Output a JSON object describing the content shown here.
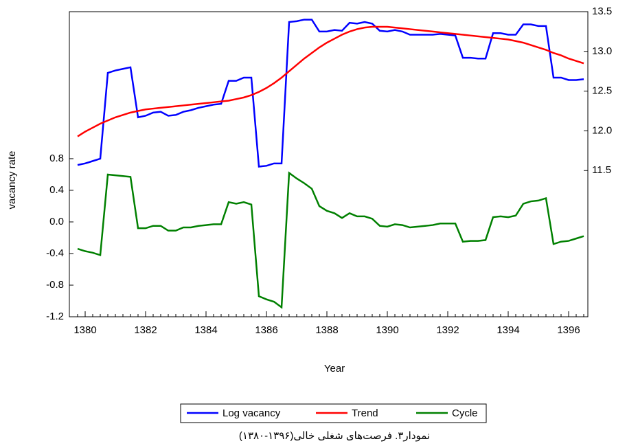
{
  "chart_data": {
    "type": "line",
    "x_label": "Year",
    "y_label": "vacancy rate",
    "caption": "نمودار۳. فرصت‌های شغلی خالی(۱۳۹۶-۱۳۸۰)",
    "categories": [
      null,
      "1380",
      null,
      null,
      null,
      null,
      null,
      null,
      null,
      "1382",
      null,
      null,
      null,
      null,
      null,
      null,
      null,
      "1384",
      null,
      null,
      null,
      null,
      null,
      null,
      null,
      "1386",
      null,
      null,
      null,
      null,
      null,
      null,
      null,
      "1388",
      null,
      null,
      null,
      null,
      null,
      null,
      null,
      "1390",
      null,
      null,
      null,
      null,
      null,
      null,
      null,
      "1392",
      null,
      null,
      null,
      null,
      null,
      null,
      null,
      "1394",
      null,
      null,
      null,
      null,
      null,
      null,
      null,
      "1396",
      null,
      null
    ],
    "series": [
      {
        "name": "Log vacancy",
        "color": "#0000ff",
        "axis": "y2",
        "values": [
          11.57,
          11.59,
          11.62,
          11.65,
          12.73,
          12.76,
          12.78,
          12.8,
          12.17,
          12.19,
          12.23,
          12.24,
          12.19,
          12.2,
          12.24,
          12.26,
          12.29,
          12.31,
          12.33,
          12.34,
          12.63,
          12.63,
          12.67,
          12.67,
          11.55,
          11.56,
          11.59,
          11.59,
          13.37,
          13.38,
          13.4,
          13.4,
          13.25,
          13.25,
          13.27,
          13.26,
          13.36,
          13.35,
          13.37,
          13.35,
          13.26,
          13.25,
          13.27,
          13.25,
          13.21,
          13.21,
          13.21,
          13.21,
          13.22,
          13.21,
          13.2,
          12.92,
          12.92,
          12.91,
          12.91,
          13.23,
          13.23,
          13.21,
          13.21,
          13.34,
          13.34,
          13.32,
          13.32,
          12.67,
          12.67,
          12.64,
          12.64,
          12.65
        ]
      },
      {
        "name": "Trend",
        "color": "#ff0000",
        "axis": "y2",
        "values": [
          11.93,
          11.99,
          12.04,
          12.09,
          12.13,
          12.17,
          12.2,
          12.23,
          12.25,
          12.27,
          12.28,
          12.29,
          12.3,
          12.31,
          12.32,
          12.33,
          12.34,
          12.35,
          12.36,
          12.37,
          12.38,
          12.4,
          12.42,
          12.45,
          12.49,
          12.54,
          12.6,
          12.67,
          12.75,
          12.83,
          12.91,
          12.98,
          13.05,
          13.11,
          13.16,
          13.21,
          13.25,
          13.28,
          13.3,
          13.31,
          13.31,
          13.31,
          13.3,
          13.29,
          13.28,
          13.27,
          13.26,
          13.25,
          13.24,
          13.23,
          13.22,
          13.21,
          13.2,
          13.19,
          13.18,
          13.17,
          13.16,
          13.15,
          13.13,
          13.11,
          13.08,
          13.05,
          13.02,
          12.98,
          12.95,
          12.91,
          12.88,
          12.85
        ]
      },
      {
        "name": "Cycle",
        "color": "#008000",
        "axis": "y",
        "values": [
          -0.34,
          -0.37,
          -0.39,
          -0.42,
          0.6,
          0.59,
          0.58,
          0.57,
          -0.08,
          -0.08,
          -0.05,
          -0.05,
          -0.11,
          -0.11,
          -0.07,
          -0.07,
          -0.05,
          -0.04,
          -0.03,
          -0.03,
          0.25,
          0.23,
          0.25,
          0.22,
          -0.94,
          -0.98,
          -1.01,
          -1.08,
          0.62,
          0.55,
          0.49,
          0.42,
          0.2,
          0.14,
          0.11,
          0.05,
          0.11,
          0.07,
          0.07,
          0.04,
          -0.05,
          -0.06,
          -0.03,
          -0.04,
          -0.07,
          -0.06,
          -0.05,
          -0.04,
          -0.02,
          -0.02,
          -0.02,
          -0.25,
          -0.24,
          -0.24,
          -0.23,
          0.06,
          0.07,
          0.06,
          0.08,
          0.23,
          0.26,
          0.27,
          0.3,
          -0.28,
          -0.25,
          -0.24,
          -0.21,
          -0.18
        ]
      }
    ],
    "ylim": [
      -1.2,
      2.66
    ],
    "yticks": [
      -1.2,
      -0.8,
      -0.4,
      {
        "value": 0,
        "label": "0.0"
      },
      0.4,
      0.8
    ],
    "y2lim": [
      9.66,
      13.5
    ],
    "y2ticks": [
      11.5,
      {
        "value": 12,
        "label": "12.0"
      },
      12.5,
      {
        "value": 13,
        "label": "13.0"
      },
      13.5
    ],
    "legend": "bottom"
  }
}
